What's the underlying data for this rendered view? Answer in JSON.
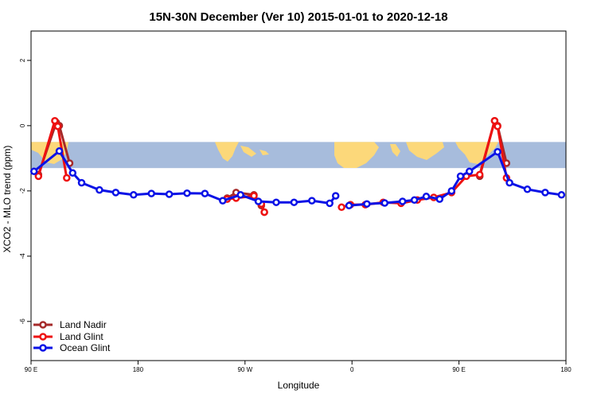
{
  "chart_data": {
    "type": "line",
    "title": "15N-30N December (Ver 10)   2015-01-01 to 2020-12-18",
    "xlabel": "Longitude",
    "ylabel": "XCO2 - MLO trend (ppm)",
    "xlim": [
      -90,
      270
    ],
    "ylim": [
      -7.2,
      2.9
    ],
    "x_ticks": [
      {
        "value": -90,
        "label": "90 E"
      },
      {
        "value": -18,
        "label": "180"
      },
      {
        "value": 54,
        "label": "90 W"
      },
      {
        "value": 126,
        "label": "0"
      },
      {
        "value": 198,
        "label": "90 E"
      },
      {
        "value": 270,
        "label": "180"
      }
    ],
    "y_ticks": [
      -6,
      -4,
      -2,
      0,
      2
    ],
    "map_band": {
      "y_top": -0.5,
      "y_bottom": -1.3,
      "ocean_color": "#a7bcdc",
      "land_color": "#fcd87a"
    },
    "series": [
      {
        "name": "Land Nadir",
        "color": "#a52a2a",
        "segments": [
          [
            [
              -85,
              -1.5
            ],
            [
              -73,
              0.1
            ],
            [
              -71,
              0.0
            ],
            [
              -64,
              -1.15
            ]
          ],
          [
            [
              42,
              -2.22
            ],
            [
              48,
              -2.05
            ],
            [
              60,
              -2.12
            ],
            [
              65,
              -2.45
            ],
            [
              67,
              -2.65
            ]
          ],
          [
            [
              212,
              -1.55
            ],
            [
              222,
              0.15
            ],
            [
              224,
              0.0
            ],
            [
              230,
              -1.15
            ]
          ]
        ]
      },
      {
        "name": "Land Glint",
        "color": "#ee1111",
        "segments": [
          [
            [
              -85,
              -1.55
            ],
            [
              -74,
              0.15
            ],
            [
              -72,
              -0.02
            ],
            [
              -66,
              -1.6
            ]
          ],
          [
            [
              42,
              -2.25
            ],
            [
              48,
              -2.22
            ],
            [
              60,
              -2.15
            ],
            [
              65,
              -2.4
            ],
            [
              67,
              -2.65
            ]
          ],
          [
            [
              119,
              -2.5
            ],
            [
              125,
              -2.42
            ],
            [
              135,
              -2.42
            ],
            [
              147,
              -2.35
            ],
            [
              159,
              -2.38
            ],
            [
              170,
              -2.28
            ],
            [
              181,
              -2.2
            ],
            [
              193,
              -2.05
            ],
            [
              203,
              -1.55
            ],
            [
              212,
              -1.5
            ],
            [
              222,
              0.15
            ],
            [
              224,
              -0.02
            ],
            [
              230,
              -1.6
            ]
          ]
        ]
      },
      {
        "name": "Ocean Glint",
        "color": "#0a12e6",
        "segments": [
          [
            [
              -88,
              -1.4
            ],
            [
              -71,
              -0.78
            ],
            [
              -62,
              -1.45
            ],
            [
              -56,
              -1.75
            ],
            [
              -44,
              -1.97
            ],
            [
              -33,
              -2.05
            ],
            [
              -21,
              -2.12
            ],
            [
              -9,
              -2.08
            ],
            [
              3,
              -2.1
            ],
            [
              15,
              -2.07
            ],
            [
              27,
              -2.08
            ],
            [
              39,
              -2.3
            ],
            [
              51,
              -2.12
            ],
            [
              63,
              -2.32
            ],
            [
              75,
              -2.35
            ],
            [
              87,
              -2.35
            ],
            [
              99,
              -2.3
            ],
            [
              111,
              -2.38
            ],
            [
              115,
              -2.15
            ]
          ],
          [
            [
              124,
              -2.45
            ],
            [
              136,
              -2.4
            ],
            [
              148,
              -2.37
            ],
            [
              160,
              -2.32
            ],
            [
              168,
              -2.28
            ],
            [
              176,
              -2.17
            ],
            [
              185,
              -2.25
            ],
            [
              193,
              -2.0
            ],
            [
              199,
              -1.55
            ],
            [
              205,
              -1.4
            ],
            [
              224,
              -0.8
            ],
            [
              232,
              -1.75
            ],
            [
              244,
              -1.95
            ],
            [
              256,
              -2.05
            ],
            [
              267,
              -2.12
            ]
          ]
        ]
      }
    ],
    "legend": {
      "position": "bottom-left",
      "entries": [
        "Land Nadir",
        "Land Glint",
        "Ocean Glint"
      ]
    }
  }
}
